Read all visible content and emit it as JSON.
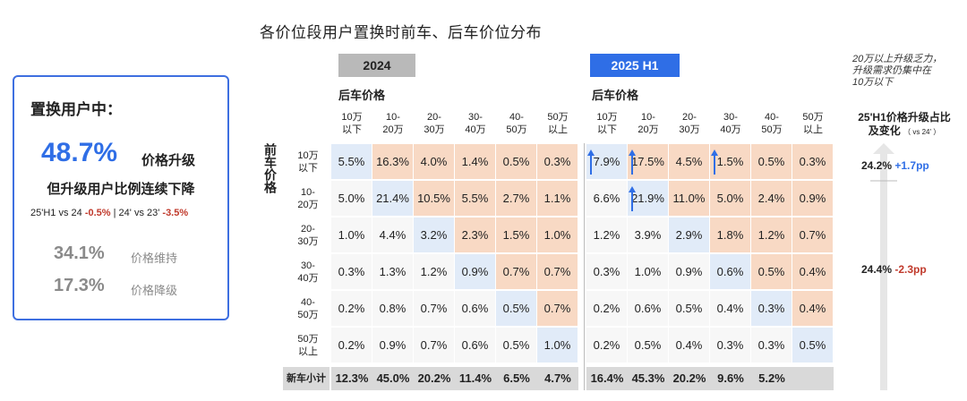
{
  "title": "各价位段用户置换时前车、后车价位分布",
  "summary": {
    "header": "置换用户中：",
    "upgrade_pct": "48.7%",
    "upgrade_label": "价格升级",
    "subtitle": "但升级用户比例连续下降",
    "cmp_a_text": "25'H1 vs 24",
    "cmp_a_val": "-0.5%",
    "cmp_sep": "|",
    "cmp_b_text": "24' vs 23'",
    "cmp_b_val": "-3.5%",
    "maintain_pct": "34.1%",
    "maintain_label": "价格维持",
    "downgrade_pct": "17.3%",
    "downgrade_label": "价格降级"
  },
  "tabs": {
    "y2024": "2024",
    "y2025": "2025 H1"
  },
  "after_price_label": "后车价格",
  "before_price_label": "前车价格",
  "price_bands": [
    [
      "10万",
      "以下"
    ],
    [
      "10-",
      "20万"
    ],
    [
      "20-",
      "30万"
    ],
    [
      "30-",
      "40万"
    ],
    [
      "40-",
      "50万"
    ],
    [
      "50万",
      "以上"
    ]
  ],
  "footer_label": "新车小计",
  "note": [
    "20万以上升级乏力，",
    "升级需求仍集中在",
    "10万以下"
  ],
  "right_header": {
    "line1": "25'H1价格升级占比",
    "line2": "及变化",
    "small": "（ vs 24' ）"
  },
  "right_values": [
    {
      "value": "24.2%",
      "change": "+1.7pp"
    },
    {
      "value": "24.4%",
      "change": "-2.3pp"
    }
  ],
  "colors": {
    "accent": "#2f6ee6",
    "orange": "#f8d9c4",
    "blue_cell": "#e1ebf8",
    "negative": "#c0392b"
  },
  "chart_data": [
    {
      "type": "heatmap",
      "title": "2024",
      "row_axis": "前车价格",
      "col_axis": "后车价格",
      "rows": [
        "10万以下",
        "10-20万",
        "20-30万",
        "30-40万",
        "40-50万",
        "50万以上"
      ],
      "cols": [
        "10万以下",
        "10-20万",
        "20-30万",
        "30-40万",
        "40-50万",
        "50万以上"
      ],
      "cells": [
        [
          "5.5%",
          "16.3%",
          "4.0%",
          "1.4%",
          "0.5%",
          "0.3%"
        ],
        [
          "5.0%",
          "21.4%",
          "10.5%",
          "5.5%",
          "2.7%",
          "1.1%"
        ],
        [
          "1.0%",
          "4.4%",
          "3.2%",
          "2.3%",
          "1.5%",
          "1.0%"
        ],
        [
          "0.3%",
          "1.3%",
          "1.2%",
          "0.9%",
          "0.7%",
          "0.7%"
        ],
        [
          "0.2%",
          "0.8%",
          "0.7%",
          "0.6%",
          "0.5%",
          "0.7%"
        ],
        [
          "0.2%",
          "0.9%",
          "0.7%",
          "0.6%",
          "0.5%",
          "1.0%"
        ]
      ],
      "subtotal": [
        "12.3%",
        "45.0%",
        "20.2%",
        "11.4%",
        "6.5%",
        "4.7%"
      ]
    },
    {
      "type": "heatmap",
      "title": "2025 H1",
      "row_axis": "前车价格",
      "col_axis": "后车价格",
      "rows": [
        "10万以下",
        "10-20万",
        "20-30万",
        "30-40万",
        "40-50万",
        "50万以上"
      ],
      "cols": [
        "10万以下",
        "10-20万",
        "20-30万",
        "30-40万",
        "40-50万",
        "50万以上"
      ],
      "cells": [
        [
          "7.9%",
          "17.5%",
          "4.5%",
          "1.5%",
          "0.5%",
          "0.3%"
        ],
        [
          "6.6%",
          "21.9%",
          "11.0%",
          "5.0%",
          "2.4%",
          "0.9%"
        ],
        [
          "1.2%",
          "3.9%",
          "2.9%",
          "1.8%",
          "1.2%",
          "0.7%"
        ],
        [
          "0.3%",
          "1.0%",
          "0.9%",
          "0.6%",
          "0.5%",
          "0.4%"
        ],
        [
          "0.2%",
          "0.6%",
          "0.5%",
          "0.4%",
          "0.3%",
          "0.4%"
        ],
        [
          "0.2%",
          "0.5%",
          "0.4%",
          "0.3%",
          "0.3%",
          "0.5%"
        ]
      ],
      "subtotal": [
        "16.4%",
        "45.3%",
        "20.2%",
        "9.6%",
        "5.2%",
        ""
      ],
      "up_arrows": [
        [
          0,
          0
        ],
        [
          0,
          1
        ],
        [
          0,
          3
        ],
        [
          1,
          1
        ]
      ]
    }
  ]
}
